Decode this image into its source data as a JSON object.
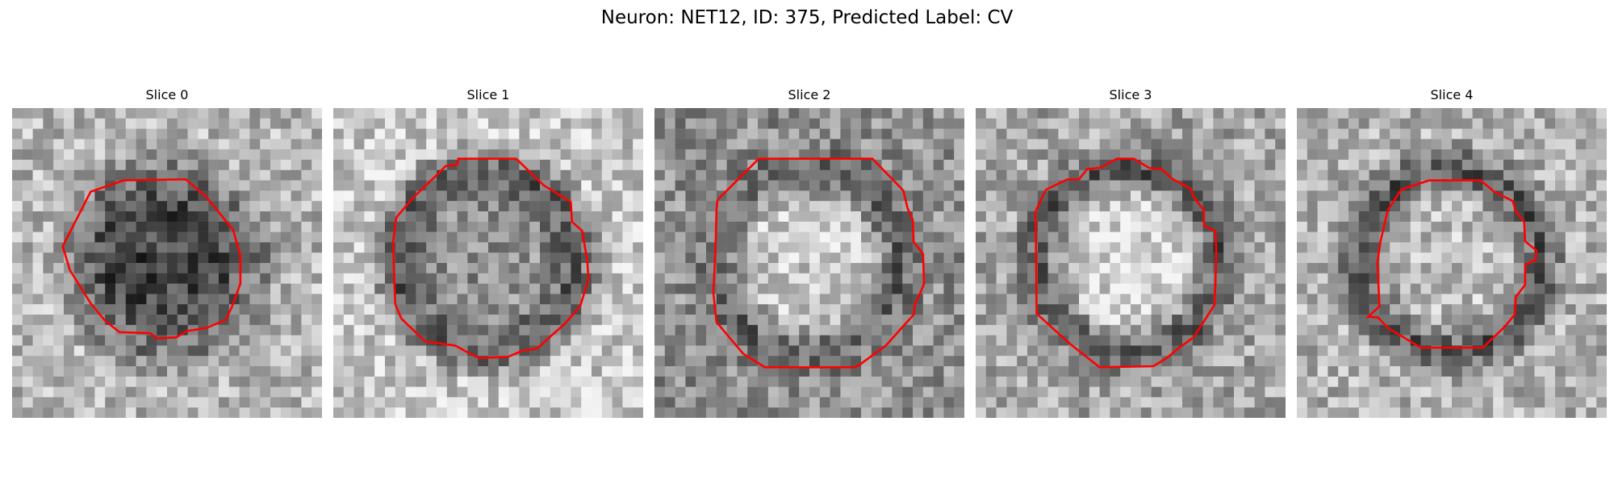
{
  "figure": {
    "title": "Neuron: NET12, ID: 375, Predicted Label: CV"
  },
  "contour_color": "#ff0000",
  "grid_size": 30,
  "slices": [
    {
      "label": "Slice 0",
      "center_intensity": 0.22,
      "ring_intensity": 0.45,
      "surround_intensity": 0.72,
      "seed": 11
    },
    {
      "label": "Slice 1",
      "center_intensity": 0.55,
      "ring_intensity": 0.32,
      "surround_intensity": 0.8,
      "seed": 23
    },
    {
      "label": "Slice 2",
      "center_intensity": 0.8,
      "ring_intensity": 0.35,
      "surround_intensity": 0.55,
      "seed": 37
    },
    {
      "label": "Slice 3",
      "center_intensity": 0.85,
      "ring_intensity": 0.3,
      "surround_intensity": 0.65,
      "seed": 41
    },
    {
      "label": "Slice 4",
      "center_intensity": 0.75,
      "ring_intensity": 0.3,
      "surround_intensity": 0.7,
      "seed": 53
    }
  ]
}
